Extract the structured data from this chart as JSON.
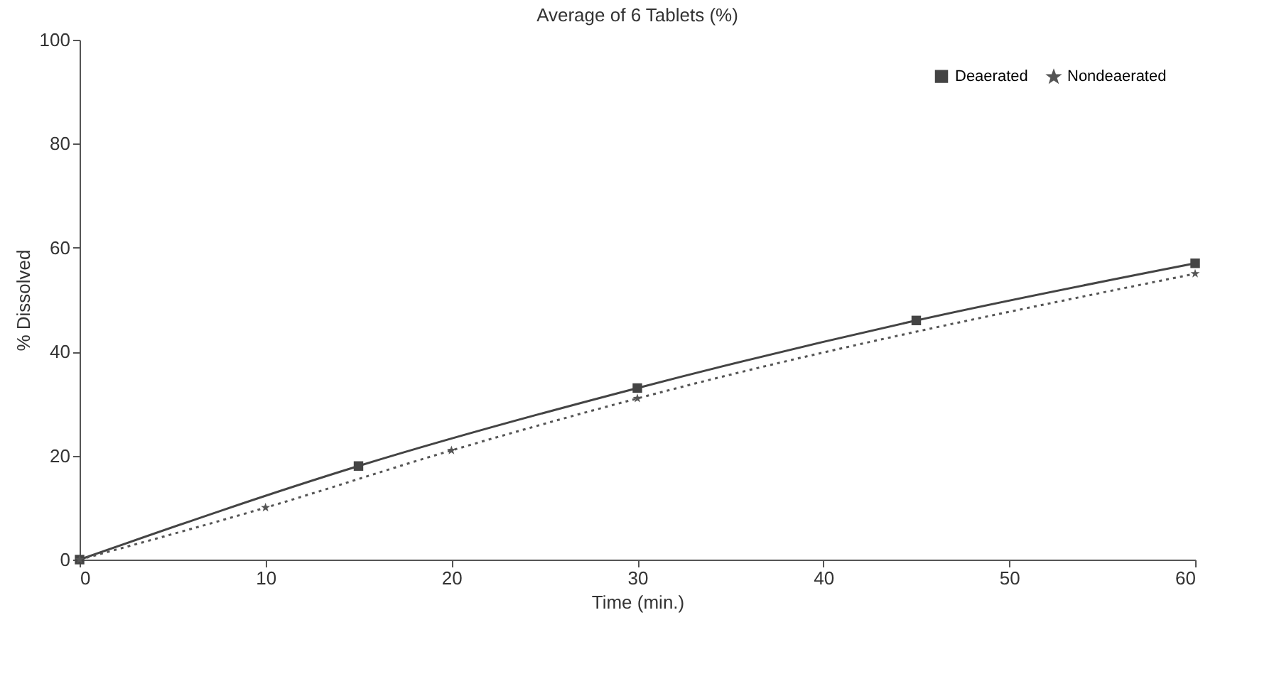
{
  "chart_data": {
    "type": "line",
    "title": "Average of 6 Tablets (%)",
    "xlabel": "Time (min.)",
    "ylabel": "% Dissolved",
    "xlim": [
      0,
      60
    ],
    "xticks": [
      0,
      10,
      20,
      30,
      40,
      50,
      60
    ],
    "ylim": [
      0,
      100
    ],
    "yticks": [
      0,
      20,
      40,
      60,
      80,
      100
    ],
    "grid": false,
    "legend": "top right",
    "series": [
      {
        "name": "Deaerated",
        "color": "#444444",
        "marker": "square",
        "line_style": "solid",
        "x": [
          0,
          15,
          30,
          45,
          60
        ],
        "values": [
          0,
          18,
          33,
          46,
          57
        ]
      },
      {
        "name": "Nondeaerated",
        "color": "#555555",
        "marker": "star",
        "line_style": "dotted",
        "x": [
          0,
          10,
          20,
          30,
          60
        ],
        "values": [
          0,
          10,
          21,
          31,
          55
        ]
      }
    ]
  }
}
